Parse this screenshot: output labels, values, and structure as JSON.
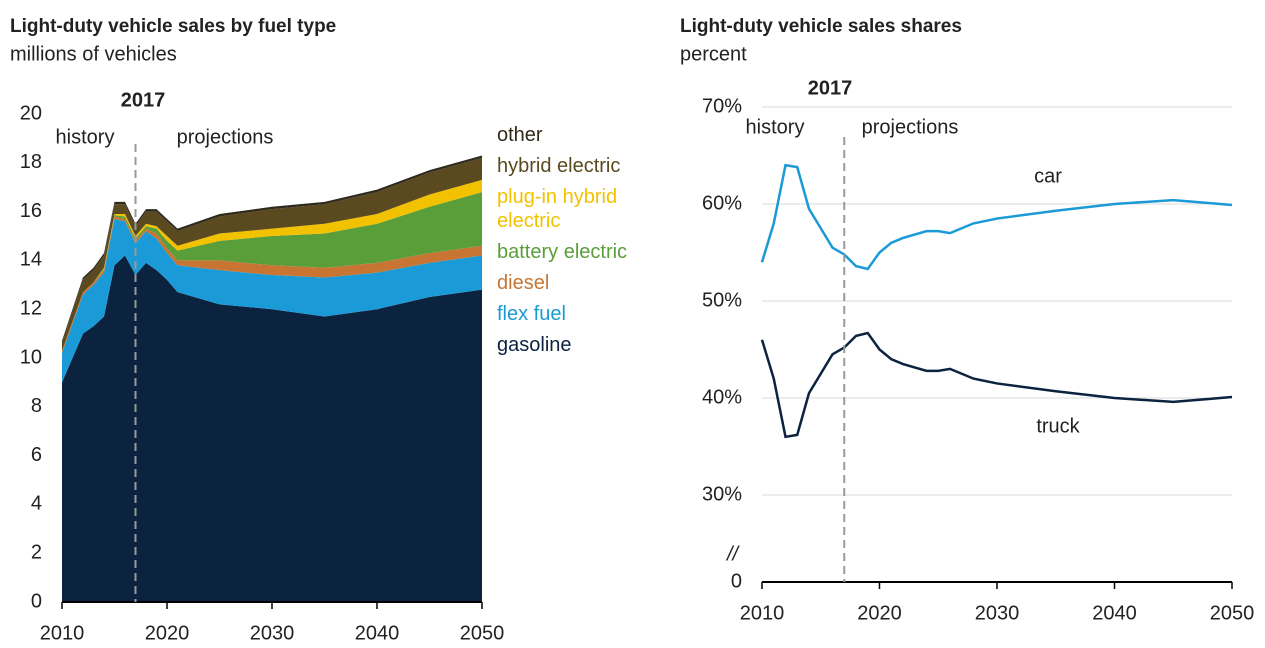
{
  "chart_data": [
    {
      "type": "area",
      "title": "Light-duty vehicle sales by fuel type",
      "subtitle": "millions of vehicles",
      "x": [
        2010,
        2012,
        2013,
        2014,
        2015,
        2016,
        2017,
        2018,
        2019,
        2020,
        2021,
        2025,
        2030,
        2035,
        2040,
        2045,
        2050
      ],
      "series": [
        {
          "name": "gasoline",
          "color": "#0c2340",
          "values": [
            9.0,
            11.0,
            11.3,
            11.7,
            13.8,
            14.2,
            13.4,
            13.9,
            13.6,
            13.2,
            12.7,
            12.2,
            12.0,
            11.7,
            12.0,
            12.5,
            12.8
          ]
        },
        {
          "name": "flex fuel",
          "color": "#1a9ad6",
          "values": [
            1.2,
            1.6,
            1.7,
            1.8,
            1.9,
            1.4,
            1.3,
            1.3,
            1.3,
            1.1,
            1.1,
            1.4,
            1.4,
            1.6,
            1.5,
            1.4,
            1.4
          ]
        },
        {
          "name": "diesel",
          "color": "#c87533",
          "values": [
            0.1,
            0.1,
            0.1,
            0.1,
            0.1,
            0.1,
            0.1,
            0.1,
            0.2,
            0.2,
            0.2,
            0.4,
            0.4,
            0.4,
            0.4,
            0.4,
            0.4
          ]
        },
        {
          "name": "battery electric",
          "color": "#5a9e3a",
          "values": [
            0,
            0,
            0,
            0.05,
            0.05,
            0.1,
            0.1,
            0.1,
            0.2,
            0.3,
            0.4,
            0.8,
            1.2,
            1.4,
            1.6,
            1.9,
            2.2
          ]
        },
        {
          "name": "plug-in hybrid electric",
          "color": "#f2c200",
          "values": [
            0,
            0,
            0,
            0.05,
            0.05,
            0.1,
            0.1,
            0.1,
            0.1,
            0.2,
            0.2,
            0.3,
            0.3,
            0.4,
            0.4,
            0.5,
            0.5
          ]
        },
        {
          "name": "hybrid electric",
          "color": "#5b4a1f",
          "values": [
            0.3,
            0.5,
            0.5,
            0.5,
            0.4,
            0.4,
            0.4,
            0.5,
            0.6,
            0.6,
            0.6,
            0.7,
            0.8,
            0.8,
            0.9,
            0.9,
            0.9
          ]
        },
        {
          "name": "other",
          "color": "#2e2a1c",
          "values": [
            0.1,
            0.1,
            0.1,
            0.1,
            0.1,
            0.1,
            0.1,
            0.1,
            0.1,
            0.1,
            0.1,
            0.1,
            0.1,
            0.1,
            0.1,
            0.1,
            0.1
          ]
        }
      ],
      "xlim": [
        2010,
        2050
      ],
      "xticks": [
        2010,
        2020,
        2030,
        2040,
        2050
      ],
      "ylim": [
        0,
        20
      ],
      "yticks": [
        0,
        2,
        4,
        6,
        8,
        10,
        12,
        14,
        16,
        18,
        20
      ],
      "divider": 2017,
      "left_note": "history",
      "right_note": "projections",
      "grid": false
    },
    {
      "type": "line",
      "title": "Light-duty vehicle sales shares",
      "subtitle": "percent",
      "x": [
        2010,
        2011,
        2012,
        2013,
        2014,
        2015,
        2016,
        2017,
        2018,
        2019,
        2020,
        2021,
        2022,
        2024,
        2025,
        2026,
        2028,
        2030,
        2035,
        2040,
        2045,
        2048,
        2050
      ],
      "series": [
        {
          "name": "car",
          "color": "#1a9ad6",
          "values": [
            54,
            58,
            64,
            63.8,
            59.5,
            57.5,
            55.5,
            54.8,
            53.6,
            53.3,
            55,
            56,
            56.5,
            57.2,
            57.2,
            57,
            58,
            58.5,
            59.3,
            60,
            60.4,
            60.1,
            59.9
          ]
        },
        {
          "name": "truck",
          "color": "#0c2340",
          "values": [
            46,
            42,
            36,
            36.2,
            40.5,
            42.5,
            44.5,
            45.2,
            46.4,
            46.7,
            45,
            44,
            43.5,
            42.8,
            42.8,
            43,
            42,
            41.5,
            40.7,
            40,
            39.6,
            39.9,
            40.1
          ]
        }
      ],
      "xlim": [
        2010,
        2050
      ],
      "xticks": [
        2010,
        2020,
        2030,
        2040,
        2050
      ],
      "ylim": [
        0,
        70
      ],
      "ybreak": [
        0,
        30
      ],
      "break_label": "//",
      "yticks": [
        0,
        {
          "value": 30,
          "label": "30%"
        },
        {
          "value": 40,
          "label": "40%"
        },
        {
          "value": 50,
          "label": "50%"
        },
        {
          "value": 60,
          "label": "60%"
        },
        {
          "value": 70,
          "label": "70%"
        }
      ],
      "divider": 2017,
      "left_note": "history",
      "right_note": "projections",
      "grid": true
    }
  ]
}
